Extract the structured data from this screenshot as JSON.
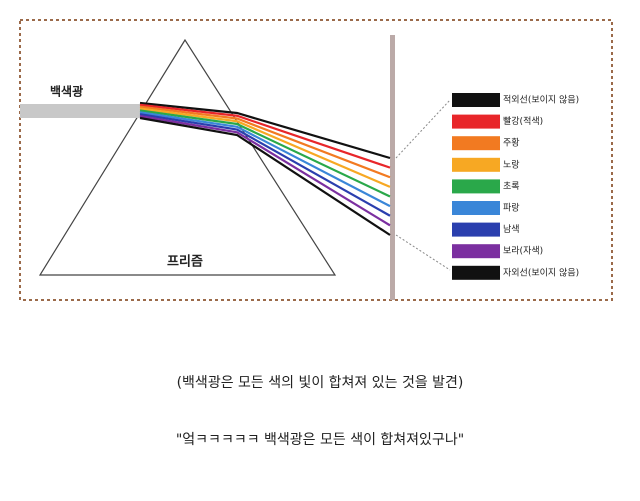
{
  "diagram": {
    "beam_label": "백색광",
    "prism_label": "프리즘",
    "legend": [
      {
        "label": "적외선(보이지 않음)",
        "color": "#111111"
      },
      {
        "label": "빨강(적색)",
        "color": "#e8262a"
      },
      {
        "label": "주황",
        "color": "#f27a21"
      },
      {
        "label": "노랑",
        "color": "#f7a823"
      },
      {
        "label": "초록",
        "color": "#2aa84a"
      },
      {
        "label": "파랑",
        "color": "#3a86d8"
      },
      {
        "label": "남색",
        "color": "#2a3fae"
      },
      {
        "label": "보라(자색)",
        "color": "#7b2fa0"
      },
      {
        "label": "자외선(보이지 않음)",
        "color": "#111111"
      }
    ]
  },
  "captions": [
    "(백색광은 모든 색의 빛이 합쳐져 있는 것을 발견)",
    "\"엌ㅋㅋㅋㅋㅋ 백색광은 모든 색이 합쳐져있구나\""
  ]
}
